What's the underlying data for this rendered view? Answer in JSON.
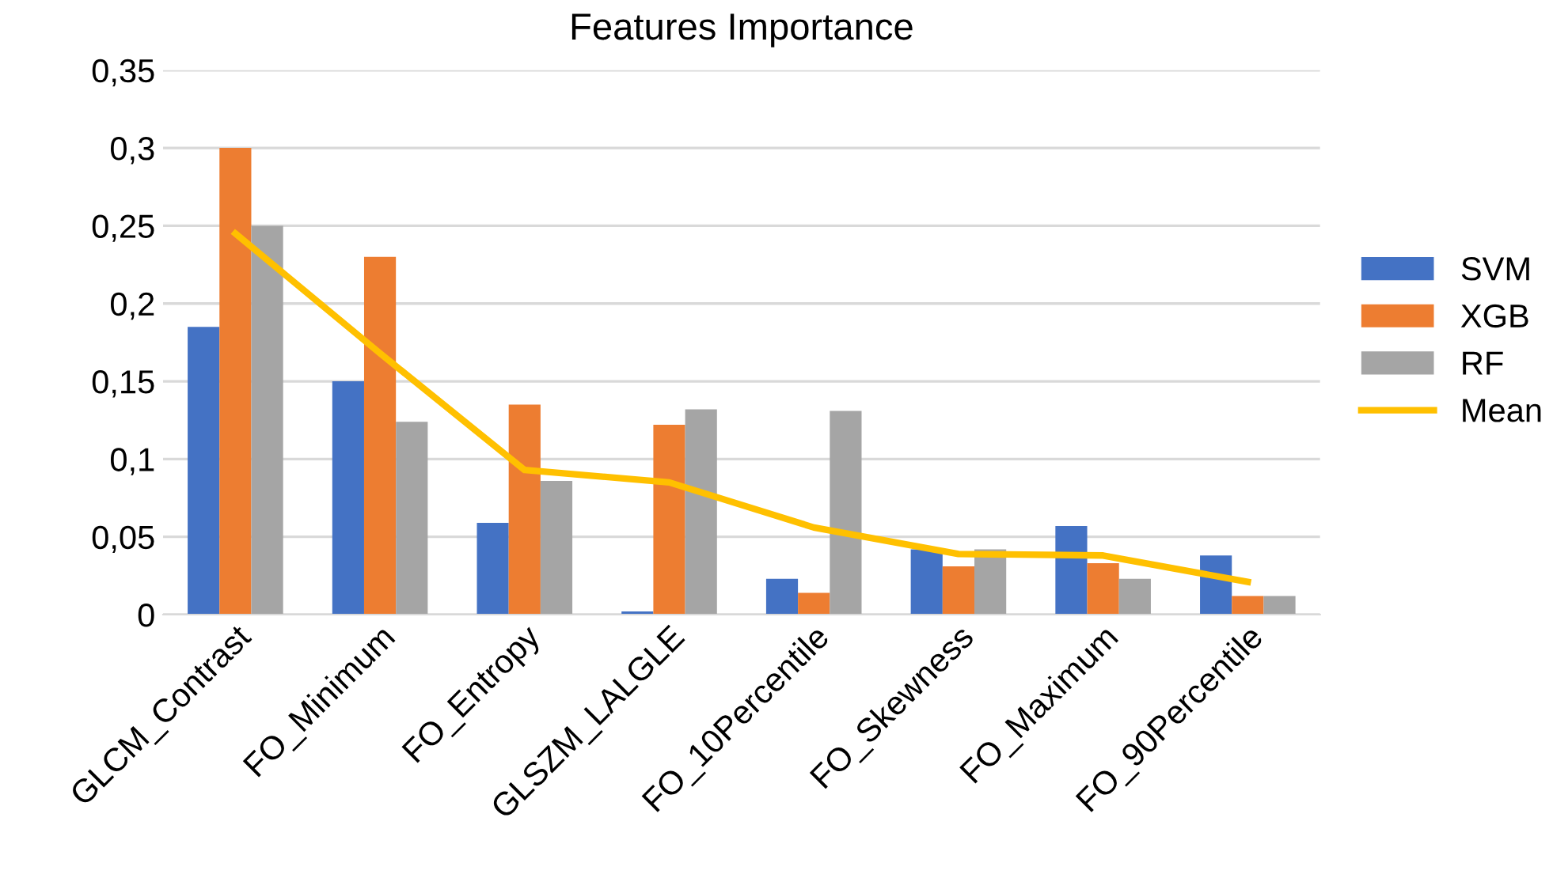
{
  "chart_data": {
    "type": "bar",
    "title": "Features Importance",
    "categories": [
      "GLCM_Contrast",
      "FO_Minimum",
      "FO_Entropy",
      "GLSZM_LALGLE",
      "FO_10Percentile",
      "FO_Skewness",
      "FO_Maximum",
      "FO_90Percentile"
    ],
    "series": [
      {
        "name": "SVM",
        "color": "#4472c4",
        "values": [
          0.185,
          0.15,
          0.059,
          0.002,
          0.023,
          0.042,
          0.057,
          0.038
        ]
      },
      {
        "name": "XGB",
        "color": "#ed7d31",
        "values": [
          0.3,
          0.23,
          0.135,
          0.122,
          0.014,
          0.031,
          0.033,
          0.012
        ]
      },
      {
        "name": "RF",
        "color": "#a5a5a5",
        "values": [
          0.25,
          0.124,
          0.086,
          0.132,
          0.131,
          0.042,
          0.023,
          0.012
        ]
      },
      {
        "name": "Mean",
        "color": "#ffc000",
        "type": "line",
        "values": [
          0.245,
          0.168,
          0.093,
          0.085,
          0.056,
          0.039,
          0.038,
          0.021
        ]
      }
    ],
    "ylim": [
      0,
      0.35
    ],
    "yticks": [
      {
        "value": 0,
        "label": "0"
      },
      {
        "value": 0.05,
        "label": "0,05"
      },
      {
        "value": 0.1,
        "label": "0,1"
      },
      {
        "value": 0.15,
        "label": "0,15"
      },
      {
        "value": 0.2,
        "label": "0,2"
      },
      {
        "value": 0.25,
        "label": "0,25"
      },
      {
        "value": 0.3,
        "label": "0,3"
      },
      {
        "value": 0.35,
        "label": "0,35"
      }
    ],
    "grid": "y",
    "legend": "right",
    "marker": "none"
  }
}
